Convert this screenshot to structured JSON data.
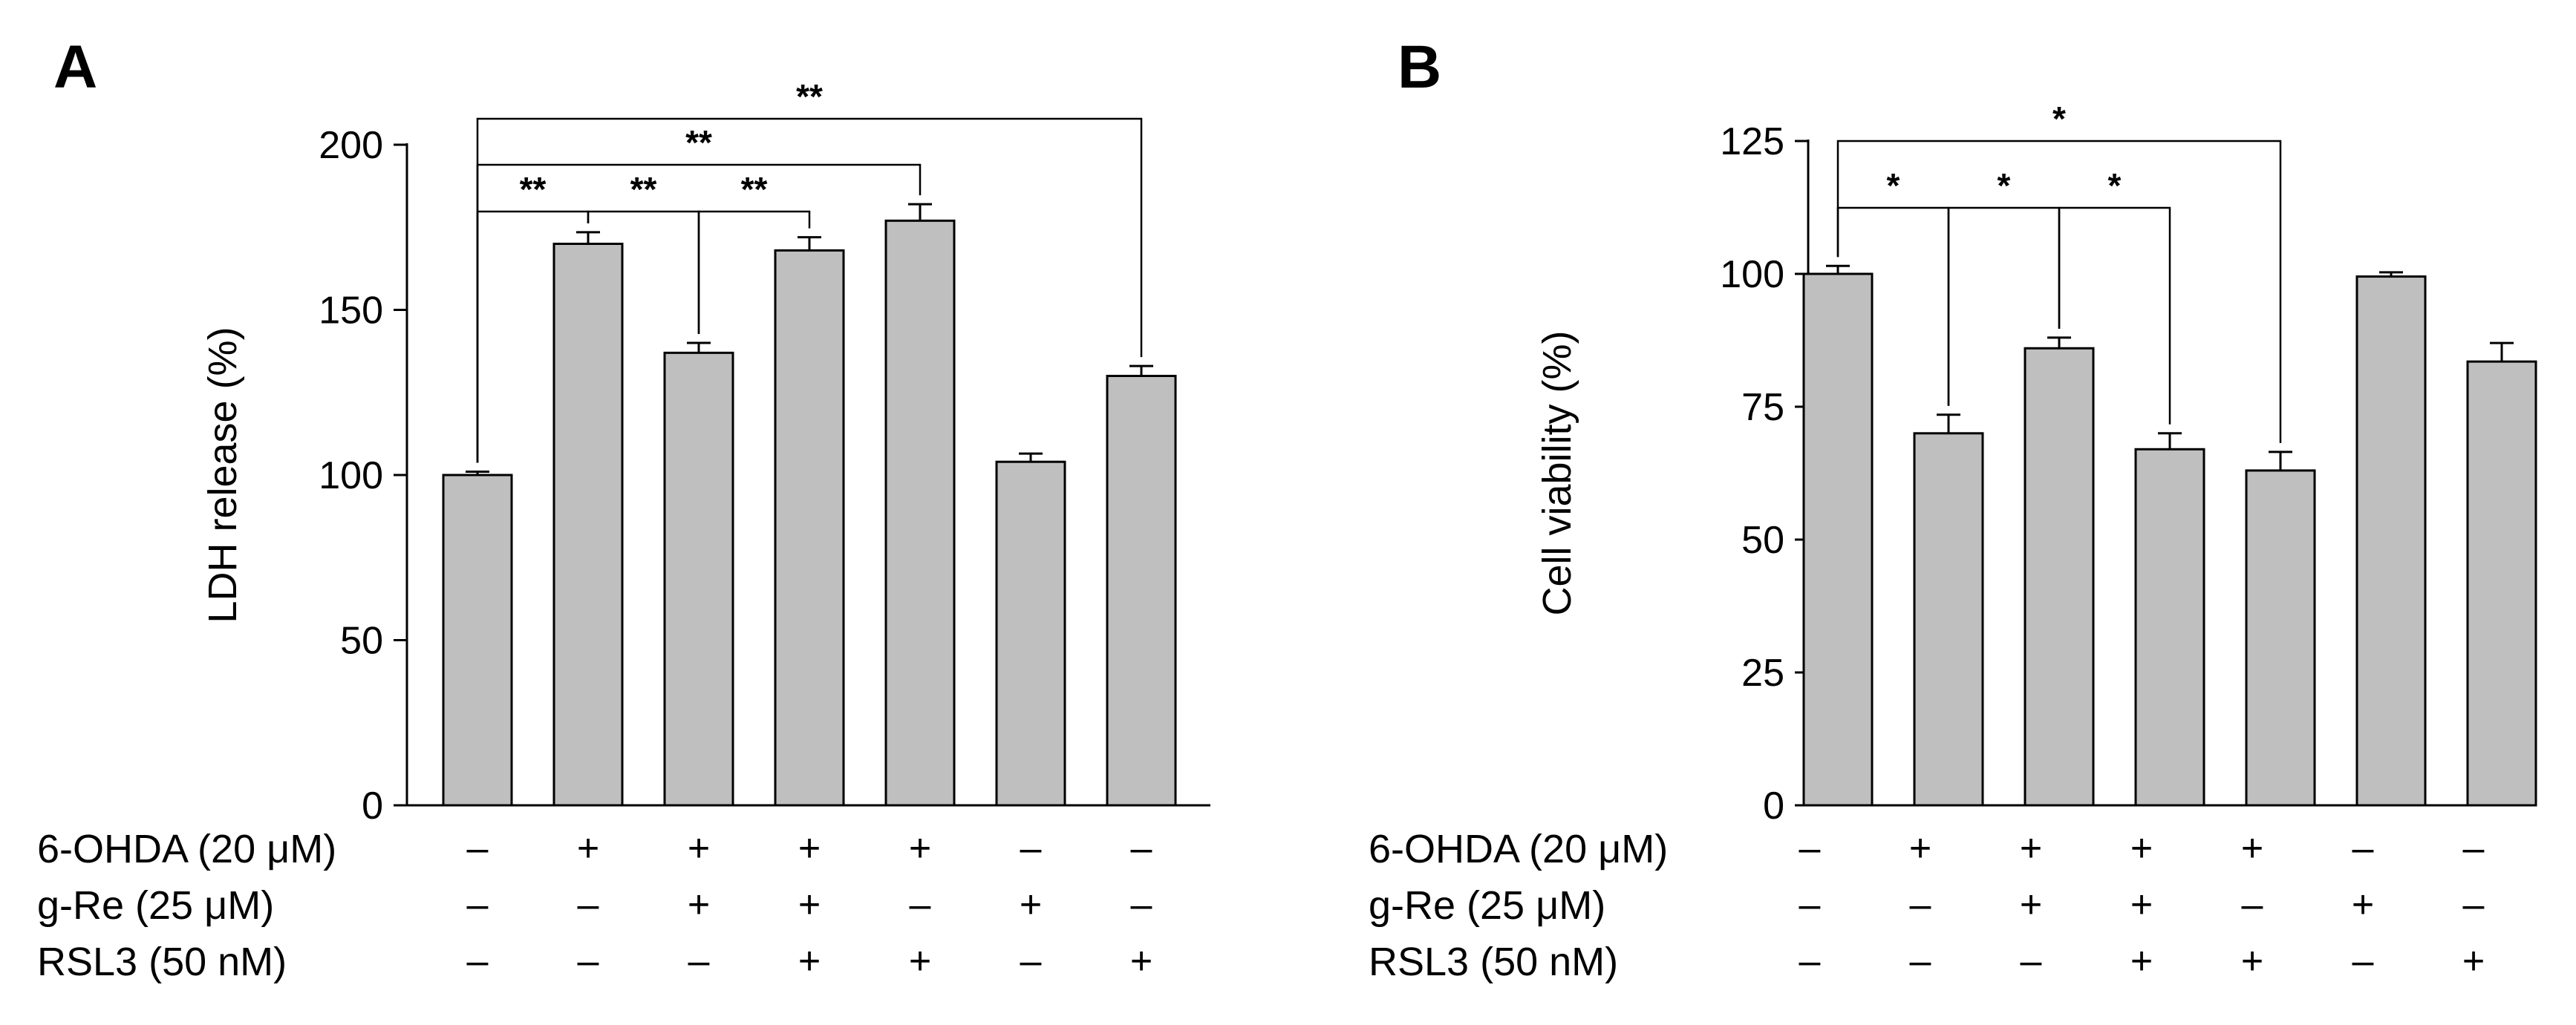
{
  "chart_data": [
    {
      "type": "bar",
      "panel_label": "A",
      "ylabel": "LDH release (%)",
      "ylim": [
        0,
        200
      ],
      "yticks": [
        0,
        50,
        100,
        150,
        200
      ],
      "categories": [
        "1",
        "2",
        "3",
        "4",
        "5",
        "6",
        "7"
      ],
      "values": [
        100,
        170,
        137,
        168,
        177,
        104,
        130
      ],
      "errors": [
        1,
        3.5,
        3,
        4,
        5,
        2.5,
        3
      ],
      "significance": [
        {
          "from": 0,
          "to": 1,
          "label": "**"
        },
        {
          "from": 1,
          "to": 2,
          "label": "**"
        },
        {
          "from": 2,
          "to": 3,
          "label": "**"
        },
        {
          "from": 0,
          "to": 4,
          "label": "**"
        },
        {
          "from": 0,
          "to": 6,
          "label": "**"
        }
      ]
    },
    {
      "type": "bar",
      "panel_label": "B",
      "ylabel": "Cell viability (%)",
      "ylim": [
        0,
        125
      ],
      "yticks": [
        0,
        25,
        50,
        75,
        100,
        125
      ],
      "categories": [
        "1",
        "2",
        "3",
        "4",
        "5",
        "6",
        "7"
      ],
      "values": [
        100,
        70,
        86,
        67,
        63,
        99.5,
        83.5
      ],
      "errors": [
        1.5,
        3.5,
        2,
        3,
        3.5,
        0.8,
        3.5
      ],
      "significance": [
        {
          "from": 0,
          "to": 1,
          "label": "*"
        },
        {
          "from": 1,
          "to": 2,
          "label": "*"
        },
        {
          "from": 2,
          "to": 3,
          "label": "*"
        },
        {
          "from": 0,
          "to": 4,
          "label": "*"
        }
      ]
    }
  ],
  "treatments": [
    {
      "label": "6-OHDA (20 μM)",
      "signs": [
        "–",
        "+",
        "+",
        "+",
        "+",
        "–",
        "–"
      ]
    },
    {
      "label": "g-Re (25 μM)",
      "signs": [
        "–",
        "–",
        "+",
        "+",
        "–",
        "+",
        "–"
      ]
    },
    {
      "label": "RSL3 (50 nM)",
      "signs": [
        "–",
        "–",
        "–",
        "+",
        "+",
        "–",
        "+"
      ]
    }
  ]
}
